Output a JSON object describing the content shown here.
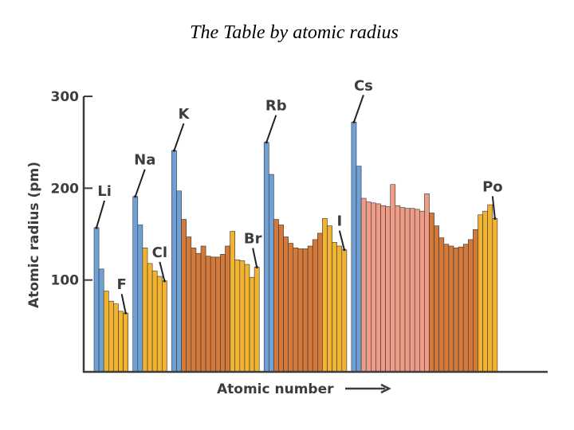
{
  "slide": {
    "title": "The Table by atomic radius"
  },
  "colors": {
    "s-block": "#6fa0d6",
    "p-block": "#f2b430",
    "d-block": "#d3793a",
    "f-block": "#ee9c85",
    "axis": "#3d3d3d",
    "bar-outline": "#333333"
  },
  "chart_data": {
    "type": "bar",
    "title": "",
    "xlabel": "Atomic number",
    "ylabel": "Atomic radius (pm)",
    "ylim": [
      0,
      300
    ],
    "yticks": [
      100,
      200,
      300
    ],
    "grid": false,
    "groups": [
      {
        "block": "s",
        "values": [
          157,
          112
        ]
      },
      {
        "block": "p",
        "values": [
          88,
          77,
          74,
          66,
          64
        ]
      },
      {
        "block": "s",
        "values": [
          191,
          160
        ]
      },
      {
        "block": "p",
        "values": [
          135,
          118,
          110,
          104,
          99
        ]
      },
      {
        "block": "s",
        "values": [
          241,
          197
        ]
      },
      {
        "block": "d",
        "values": [
          166,
          147,
          135,
          129,
          137,
          126,
          125,
          125,
          128,
          137
        ]
      },
      {
        "block": "p",
        "values": [
          153,
          122,
          121,
          117,
          103,
          114
        ]
      },
      {
        "block": "s",
        "values": [
          250,
          215
        ]
      },
      {
        "block": "d",
        "values": [
          166,
          160,
          147,
          140,
          135,
          134,
          134,
          137,
          144,
          151
        ]
      },
      {
        "block": "p",
        "values": [
          167,
          159,
          141,
          137,
          133
        ]
      },
      {
        "block": "s",
        "values": [
          272,
          224
        ]
      },
      {
        "block": "f",
        "values": [
          189,
          185,
          184,
          183,
          181,
          180,
          204,
          181,
          179,
          178,
          178,
          177,
          175,
          194
        ]
      },
      {
        "block": "d",
        "values": [
          173,
          159,
          146,
          139,
          137,
          135,
          136,
          139,
          144,
          155
        ]
      },
      {
        "block": "p",
        "values": [
          171,
          175,
          182,
          167
        ]
      }
    ],
    "annotations": [
      {
        "label": "Li",
        "group": 0,
        "index": 0
      },
      {
        "label": "F",
        "group": 1,
        "index": 4
      },
      {
        "label": "Na",
        "group": 2,
        "index": 0
      },
      {
        "label": "Cl",
        "group": 3,
        "index": 4
      },
      {
        "label": "K",
        "group": 4,
        "index": 0
      },
      {
        "label": "Br",
        "group": 6,
        "index": 5
      },
      {
        "label": "Rb",
        "group": 7,
        "index": 0
      },
      {
        "label": "I",
        "group": 9,
        "index": 4
      },
      {
        "label": "Cs",
        "group": 10,
        "index": 0
      },
      {
        "label": "Po",
        "group": 13,
        "index": 3
      }
    ]
  }
}
